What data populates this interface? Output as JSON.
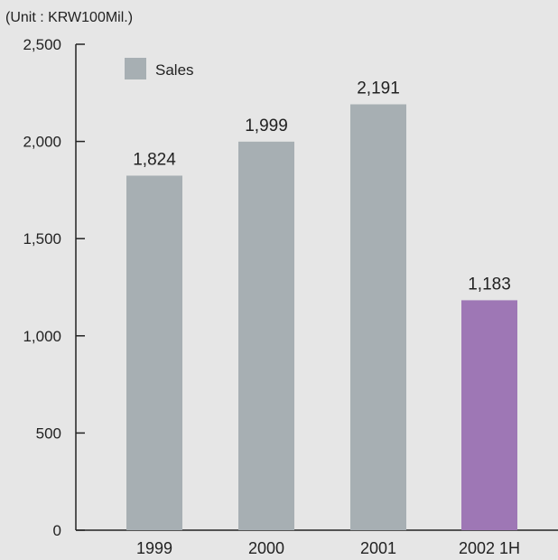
{
  "chart_data": {
    "type": "bar",
    "unit_note": "(Unit : KRW100Mil.)",
    "title": "",
    "xlabel": "",
    "ylabel": "",
    "categories": [
      "1999",
      "2000",
      "2001",
      "2002 1H"
    ],
    "series": [
      {
        "name": "Sales",
        "values": [
          1824,
          1999,
          2191,
          1183
        ]
      }
    ],
    "value_labels": [
      "1,824",
      "1,999",
      "2,191",
      "1,183"
    ],
    "ylim": [
      0,
      2500
    ],
    "yticks": [
      0,
      500,
      1000,
      1500,
      2000,
      2500
    ],
    "ytick_labels": [
      "0",
      "500",
      "1,000",
      "1,500",
      "2,000",
      "2,500"
    ],
    "bar_colors": [
      "#a7afb3",
      "#a7afb3",
      "#a7afb3",
      "#9e77b5"
    ],
    "legend": {
      "label": "Sales",
      "color": "#a7afb3",
      "position": "top-left"
    },
    "grid": false
  }
}
